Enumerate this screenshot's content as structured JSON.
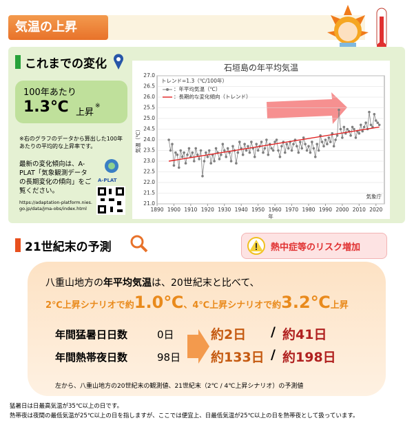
{
  "header": {
    "title": "気温の上昇"
  },
  "past": {
    "heading": "これまでの変化",
    "box_line1": "100年あたり",
    "box_value": "1.3℃",
    "box_suffix": "上昇",
    "box_mark": "※",
    "note": "※右のグラフのデータから算出した100年あたりの平均的な上昇率です。",
    "aplat_text": "最新の変化傾向は、A-PLAT「気象観測データの長期変化の傾向」をご覧ください。",
    "aplat_logo": "A-PLAT",
    "url": "https://adaptation-platform.nies.go.jp/data/jma-obs/index.html"
  },
  "chart_data": {
    "type": "line",
    "title": "石垣島の年平均気温",
    "annotation": "トレンド=1.3（℃/100年）",
    "xlabel": "年",
    "ylabel": "気温（℃）",
    "source": "気象庁",
    "xlim": [
      1890,
      2025
    ],
    "ylim": [
      21,
      27
    ],
    "xticks": [
      1890,
      1900,
      1910,
      1920,
      1930,
      1940,
      1950,
      1960,
      1970,
      1980,
      1990,
      2000,
      2010,
      2020
    ],
    "yticks": [
      {
        "value": 21,
        "label": "21.0"
      },
      21.5,
      {
        "value": 22,
        "label": "22.0"
      },
      22.5,
      {
        "value": 23,
        "label": "23.0"
      },
      23.5,
      {
        "value": 24,
        "label": "24.0"
      },
      24.5,
      {
        "value": 25,
        "label": "25.0"
      },
      25.5,
      {
        "value": 26,
        "label": "26.0"
      },
      26.5,
      {
        "value": 27,
        "label": "27.0"
      }
    ],
    "x": [
      1897,
      1898,
      1899,
      1900,
      1901,
      1902,
      1903,
      1904,
      1905,
      1906,
      1907,
      1908,
      1909,
      1910,
      1911,
      1912,
      1913,
      1914,
      1915,
      1916,
      1917,
      1918,
      1919,
      1920,
      1921,
      1922,
      1923,
      1924,
      1925,
      1926,
      1927,
      1928,
      1929,
      1930,
      1931,
      1932,
      1933,
      1934,
      1935,
      1936,
      1937,
      1938,
      1939,
      1940,
      1941,
      1942,
      1943,
      1944,
      1945,
      1946,
      1947,
      1948,
      1949,
      1950,
      1951,
      1952,
      1953,
      1954,
      1955,
      1956,
      1957,
      1958,
      1959,
      1960,
      1961,
      1962,
      1963,
      1964,
      1965,
      1966,
      1967,
      1968,
      1969,
      1970,
      1971,
      1972,
      1973,
      1974,
      1975,
      1976,
      1977,
      1978,
      1979,
      1980,
      1981,
      1982,
      1983,
      1984,
      1985,
      1986,
      1987,
      1988,
      1989,
      1990,
      1991,
      1992,
      1993,
      1994,
      1995,
      1996,
      1997,
      1998,
      1999,
      2000,
      2001,
      2002,
      2003,
      2004,
      2005,
      2006,
      2007,
      2008,
      2009,
      2010,
      2011,
      2012,
      2013,
      2014,
      2015,
      2016,
      2017,
      2018,
      2019,
      2020,
      2021,
      2022
    ],
    "series": [
      {
        "name": "：年平均気温（℃）",
        "color": "#7f7f7f",
        "values": [
          24.0,
          23.5,
          23.8,
          22.8,
          23.4,
          23.3,
          22.7,
          23.5,
          23.2,
          23.4,
          22.9,
          23.3,
          23.6,
          23.2,
          23.4,
          23.0,
          23.6,
          23.3,
          23.1,
          23.5,
          22.3,
          23.0,
          23.4,
          23.2,
          23.5,
          22.9,
          23.3,
          23.0,
          23.6,
          23.4,
          23.1,
          23.3,
          23.8,
          23.5,
          23.2,
          23.6,
          23.4,
          23.0,
          23.7,
          23.5,
          22.9,
          23.4,
          23.9,
          23.6,
          23.3,
          23.8,
          23.5,
          23.7,
          23.4,
          23.9,
          23.6,
          23.2,
          23.8,
          23.5,
          23.7,
          23.9,
          23.4,
          23.6,
          24.0,
          23.3,
          23.8,
          23.6,
          23.5,
          23.9,
          24.0,
          23.5,
          23.2,
          23.7,
          23.9,
          23.4,
          23.8,
          23.6,
          23.9,
          23.5,
          23.8,
          24.0,
          23.7,
          23.4,
          23.9,
          23.6,
          24.1,
          23.8,
          23.5,
          23.7,
          23.4,
          23.9,
          23.6,
          23.2,
          23.8,
          23.5,
          24.2,
          23.9,
          23.7,
          24.0,
          23.8,
          24.1,
          23.9,
          24.3,
          23.7,
          24.0,
          24.2,
          25.4,
          24.5,
          24.1,
          24.6,
          24.3,
          24.5,
          24.4,
          24.2,
          24.6,
          24.5,
          24.1,
          24.4,
          24.3,
          24.7,
          24.4,
          24.6,
          24.8,
          24.5,
          25.3,
          24.7,
          24.6,
          25.2,
          24.9,
          24.8,
          24.7
        ]
      }
    ],
    "trend": {
      "name": "：長期的な変化傾向（トレンド）",
      "color": "#e02020",
      "x": [
        1897,
        2022
      ],
      "values": [
        23.0,
        24.6
      ]
    }
  },
  "future": {
    "heading": "21世紀末の予測",
    "risk": "熱中症等のリスク増加",
    "lead1a": "八重山地方の",
    "lead1b": "年平均気温",
    "lead1c": "は、20世紀末と比べて、",
    "lead2a": "2℃上昇シナリオで約",
    "lead2b": "1.0℃",
    "lead2c": "、4℃上昇シナリオで約",
    "lead2d": "3.2℃",
    "lead2e": "上昇",
    "rows": [
      {
        "label": "年間猛暑日日数",
        "base": "0日",
        "v1": "約2日",
        "sep": "/",
        "v2": "約41日"
      },
      {
        "label": "年間熱帯夜日数",
        "base": "98日",
        "v1": "約133日",
        "sep": "/",
        "v2": "約198日"
      }
    ],
    "caption": "左から、八重山地方の20世紀末の観測値、21世紀末（2℃ / 4℃上昇シナリオ）の予測値"
  },
  "footnotes": [
    "猛暑日は日最高気温が35℃以上の日です。",
    "熱帯夜は夜間の最低気温が25℃以上の日を指しますが、ここでは便宜上、日最低気温が25℃以上の日を熱帯夜として扱っています。"
  ]
}
